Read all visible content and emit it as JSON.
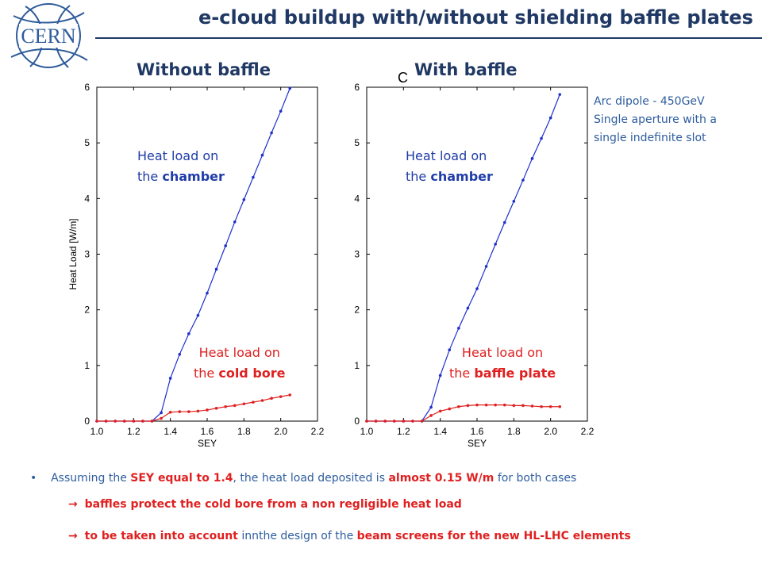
{
  "header": {
    "title": "e-cloud buildup with/without shielding baffle plates",
    "logo_text": "CERN"
  },
  "stray_label": "C",
  "note": {
    "line1": "Arc dipole - 450GeV",
    "line2": "Single aperture with a",
    "line3": "single indefinite slot"
  },
  "panels": [
    {
      "heading": "Without baffle",
      "top_label_prefix": "Heat load on",
      "top_label_suffix_pre": "the ",
      "top_label_bold": "chamber",
      "bottom_label_prefix": "Heat load on",
      "bottom_label_suffix_pre": "the ",
      "bottom_label_bold": "cold bore"
    },
    {
      "heading": "With baffle",
      "top_label_prefix": "Heat load on",
      "top_label_suffix_pre": "the ",
      "top_label_bold": "chamber",
      "bottom_label_prefix": "Heat load on",
      "bottom_label_suffix_pre": "the ",
      "bottom_label_bold": "baffle plate"
    }
  ],
  "bullets": {
    "b1": {
      "p1": "Assuming the ",
      "p2": "SEY equal to 1.4",
      "p3": ", the heat load deposited is ",
      "p4": "almost 0.15 W/m",
      "p5": " for both cases"
    },
    "b2": {
      "arrow": "→",
      "p1": "baffles protect the cold bore from a non regligible heat load"
    },
    "b3": {
      "arrow": "→",
      "p1": "to be taken into account",
      "p2": " innthe design of the ",
      "p3": "beam screens for the new HL-LHC elements"
    }
  },
  "chart_data": [
    {
      "type": "line",
      "title": "Without baffle",
      "xlabel": "SEY",
      "ylabel": "Heat Load [W/m]",
      "xlim": [
        1.0,
        2.2
      ],
      "ylim": [
        0,
        6
      ],
      "xticks": [
        "1.0",
        "1.2",
        "1.4",
        "1.6",
        "1.8",
        "2.0",
        "2.2"
      ],
      "yticks": [
        "0",
        "1",
        "2",
        "3",
        "4",
        "5",
        "6"
      ],
      "grid": false,
      "series": [
        {
          "color": "#1f2fcc",
          "x": [
            1.0,
            1.05,
            1.1,
            1.15,
            1.2,
            1.25,
            1.3,
            1.35,
            1.4,
            1.45,
            1.5,
            1.55,
            1.6,
            1.65,
            1.7,
            1.75,
            1.8,
            1.85,
            1.9,
            1.95,
            2.0,
            2.05
          ],
          "y": [
            0,
            0,
            0,
            0,
            0,
            0,
            0,
            0.15,
            0.77,
            1.2,
            1.57,
            1.9,
            2.3,
            2.73,
            3.15,
            3.58,
            3.98,
            4.38,
            4.78,
            5.18,
            5.57,
            5.98
          ]
        },
        {
          "color": "#e02020",
          "x": [
            1.0,
            1.05,
            1.1,
            1.15,
            1.2,
            1.25,
            1.3,
            1.35,
            1.4,
            1.45,
            1.5,
            1.55,
            1.6,
            1.65,
            1.7,
            1.75,
            1.8,
            1.85,
            1.9,
            1.95,
            2.0,
            2.05
          ],
          "y": [
            0,
            0,
            0,
            0,
            0,
            0,
            0,
            0.05,
            0.16,
            0.17,
            0.17,
            0.18,
            0.2,
            0.23,
            0.26,
            0.28,
            0.31,
            0.34,
            0.37,
            0.41,
            0.44,
            0.47
          ]
        }
      ]
    },
    {
      "type": "line",
      "title": "With baffle",
      "xlabel": "SEY",
      "ylabel": "",
      "xlim": [
        1.0,
        2.2
      ],
      "ylim": [
        0,
        6
      ],
      "xticks": [
        "1.0",
        "1.2",
        "1.4",
        "1.6",
        "1.8",
        "2.0",
        "2.2"
      ],
      "yticks": [
        "0",
        "1",
        "2",
        "3",
        "4",
        "5",
        "6"
      ],
      "grid": false,
      "series": [
        {
          "color": "#1f2fcc",
          "x": [
            1.0,
            1.05,
            1.1,
            1.15,
            1.2,
            1.25,
            1.3,
            1.35,
            1.4,
            1.45,
            1.5,
            1.55,
            1.6,
            1.65,
            1.7,
            1.75,
            1.8,
            1.85,
            1.9,
            1.95,
            2.0,
            2.05
          ],
          "y": [
            0,
            0,
            0,
            0,
            0,
            0,
            0,
            0.25,
            0.82,
            1.28,
            1.67,
            2.03,
            2.38,
            2.78,
            3.18,
            3.57,
            3.95,
            4.33,
            4.72,
            5.08,
            5.45,
            5.87
          ]
        },
        {
          "color": "#e02020",
          "x": [
            1.0,
            1.05,
            1.1,
            1.15,
            1.2,
            1.25,
            1.3,
            1.35,
            1.4,
            1.45,
            1.5,
            1.55,
            1.6,
            1.65,
            1.7,
            1.75,
            1.8,
            1.85,
            1.9,
            1.95,
            2.0,
            2.05
          ],
          "y": [
            0,
            0,
            0,
            0,
            0,
            0,
            0,
            0.1,
            0.18,
            0.22,
            0.26,
            0.28,
            0.29,
            0.29,
            0.29,
            0.29,
            0.28,
            0.28,
            0.27,
            0.26,
            0.26,
            0.26
          ]
        }
      ]
    }
  ]
}
